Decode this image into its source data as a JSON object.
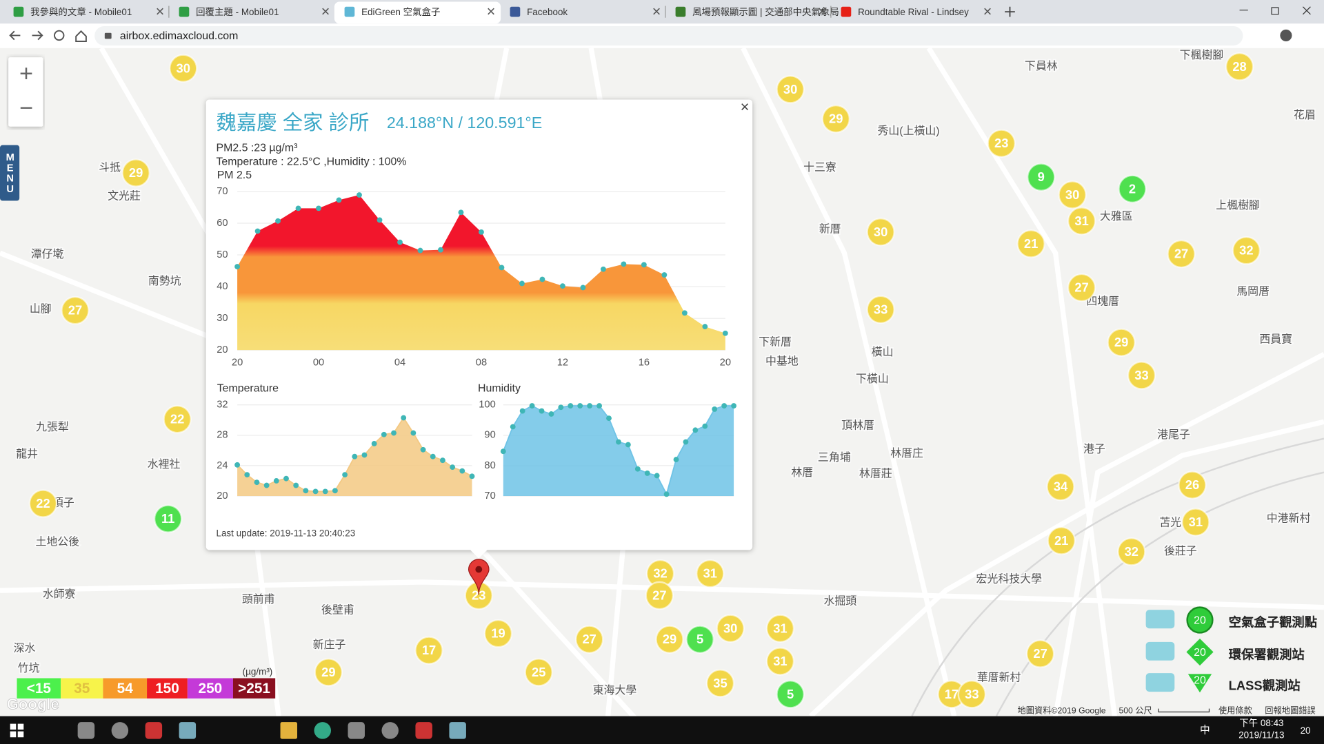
{
  "browser": {
    "tabs": [
      "我參與的文章 - Mobile01",
      "回覆主題 - Mobile01",
      "EdiGreen 空氣盒子",
      "Facebook",
      "風場預報顯示圖 | 交通部中央氣象局",
      "Roundtable Rival - Lindsey"
    ],
    "address": "airbox.edimaxcloud.com"
  },
  "map": {
    "zoom_in": "+",
    "zoom_out": "−",
    "menu": "MENU",
    "markers": [
      {
        "value": 30,
        "color": "#f2d648"
      },
      {
        "value": 30,
        "color": "#f2d648"
      },
      {
        "value": 29,
        "color": "#f2d648"
      },
      {
        "value": 28,
        "color": "#f2d648"
      },
      {
        "value": 23,
        "color": "#f2d648"
      },
      {
        "value": 9,
        "color": "#4fe04f"
      },
      {
        "value": 2,
        "color": "#4fe04f"
      },
      {
        "value": 30,
        "color": "#f2d648"
      },
      {
        "value": 31,
        "color": "#f2d648"
      },
      {
        "value": 29,
        "color": "#f2d648"
      },
      {
        "value": 30,
        "color": "#f2d648"
      },
      {
        "value": 21,
        "color": "#f2d648"
      },
      {
        "value": 27,
        "color": "#f2d648"
      },
      {
        "value": 32,
        "color": "#f2d648"
      },
      {
        "value": 27,
        "color": "#f2d648"
      },
      {
        "value": 27,
        "color": "#f2d648"
      },
      {
        "value": 33,
        "color": "#f2d648"
      },
      {
        "value": 29,
        "color": "#f2d648"
      },
      {
        "value": 33,
        "color": "#f2d648"
      },
      {
        "value": 22,
        "color": "#f2d648"
      },
      {
        "value": 34,
        "color": "#f2d648"
      },
      {
        "value": 26,
        "color": "#f2d648"
      },
      {
        "value": 22,
        "color": "#f2d648"
      },
      {
        "value": 11,
        "color": "#4fe04f"
      },
      {
        "value": 31,
        "color": "#f2d648"
      },
      {
        "value": 21,
        "color": "#f2d648"
      },
      {
        "value": 32,
        "color": "#f2d648"
      },
      {
        "value": 32,
        "color": "#f2d648"
      },
      {
        "value": 31,
        "color": "#f2d648"
      },
      {
        "value": 27,
        "color": "#f2d648"
      },
      {
        "value": 19,
        "color": "#f2d648"
      },
      {
        "value": 17,
        "color": "#f2d648"
      },
      {
        "value": 27,
        "color": "#f2d648"
      },
      {
        "value": 29,
        "color": "#f2d648"
      },
      {
        "value": 5,
        "color": "#4fe04f"
      },
      {
        "value": 30,
        "color": "#f2d648"
      },
      {
        "value": 31,
        "color": "#f2d648"
      },
      {
        "value": 31,
        "color": "#f2d648"
      },
      {
        "value": 25,
        "color": "#f2d648"
      },
      {
        "value": 29,
        "color": "#f2d648"
      },
      {
        "value": 35,
        "color": "#f2d648"
      },
      {
        "value": 5,
        "color": "#4fe04f"
      },
      {
        "value": 17,
        "color": "#f2d648"
      },
      {
        "value": 33,
        "color": "#f2d648"
      },
      {
        "value": 23,
        "color": "#f2d648"
      },
      {
        "value": 27,
        "color": "#f2d648"
      }
    ],
    "places": [
      "下員林",
      "下楓樹腳",
      "秀山(上橫山)",
      "十三寮",
      "花眉",
      "斗抵",
      "文光莊",
      "新厝",
      "大雅區",
      "上楓樹腳",
      "潭仔墘",
      "南勢坑",
      "山腳",
      "馬岡厝",
      "四塊厝",
      "西員寶",
      "下新厝",
      "中基地",
      "橫山",
      "下橫山",
      "頂林厝",
      "林厝庄",
      "三角埔",
      "林厝",
      "林厝莊",
      "港尾子",
      "港子",
      "九張犁",
      "龍井",
      "水裡社",
      "頂子",
      "土地公後",
      "中港新村",
      "苫光",
      "後莊子",
      "宏光科技大學",
      "水師寮",
      "頭前甫",
      "後壁甫",
      "水掘頭",
      "新庄子",
      "深水",
      "竹坑",
      "東海大學",
      "華厝新村"
    ],
    "pm_legend": {
      "items": [
        {
          "label": "<15",
          "color": "#4cf04c"
        },
        {
          "label": "35",
          "color": "#f7f34a"
        },
        {
          "label": "54",
          "color": "#f79a2a"
        },
        {
          "label": "150",
          "color": "#ee1e22"
        },
        {
          "label": "250",
          "color": "#c43ad8"
        },
        {
          "label": ">251",
          "color": "#8a0f20"
        }
      ],
      "unit": "(µg/m³)"
    },
    "station_legend": [
      {
        "label": "空氣盒子觀測點",
        "value": 20
      },
      {
        "label": "環保署觀測站",
        "value": 20
      },
      {
        "label": "LASS觀測站",
        "value": 20
      }
    ],
    "logo": "Google",
    "footer": [
      "地圖資料©2019 Google",
      "500 公尺",
      "使用條款",
      "回報地圖錯誤"
    ]
  },
  "popup": {
    "title": "魏嘉慶 全家 診所",
    "coords": "24.188°N / 120.591°E",
    "pm": "PM2.5 :23 µg/m³",
    "weather": "Temperature : 22.5°C ,Humidity : 100%",
    "close": "×",
    "updated": "Last update: 2019-11-13 20:40:23"
  },
  "chart_data": [
    {
      "type": "area",
      "title": "PM 2.5",
      "categories": [
        "20",
        null,
        null,
        null,
        "00",
        null,
        null,
        null,
        "04",
        null,
        null,
        null,
        "08",
        null,
        null,
        null,
        "12",
        null,
        null,
        null,
        "16",
        null,
        null,
        null,
        "20"
      ],
      "values": [
        46.3,
        57.5,
        60.7,
        64.7,
        64.7,
        67.3,
        68.9,
        61,
        54,
        51.4,
        51.6,
        63.4,
        57.2,
        46,
        41,
        42.3,
        40.2,
        39.7,
        45.5,
        47.1,
        46.9,
        43.7,
        31.7,
        27.4,
        25.3
      ],
      "ylim": [
        20,
        70
      ],
      "yticks": [
        20,
        30,
        40,
        50,
        60,
        70
      ],
      "color": "#3fb6b6",
      "grid": true
    },
    {
      "type": "area",
      "title": "Temperature",
      "values": [
        24.1,
        22.8,
        21.8,
        21.4,
        22,
        22.3,
        21.4,
        20.7,
        20.6,
        20.6,
        20.7,
        22.8,
        25.2,
        25.4,
        26.9,
        28.1,
        28.3,
        30.3,
        28.3,
        26.1,
        25.2,
        24.7,
        23.8,
        23.3,
        22.6
      ],
      "ylim": [
        20,
        32
      ],
      "yticks": [
        20,
        24,
        28,
        32
      ],
      "color": "#3fb6b6",
      "fill": "#f3c983",
      "grid": true
    },
    {
      "type": "area",
      "title": "Humidity",
      "values": [
        84.7,
        92.8,
        98,
        99.7,
        98,
        97,
        99.2,
        99.7,
        99.7,
        99.7,
        99.7,
        95.6,
        87.8,
        86.9,
        78.9,
        77.5,
        76.7,
        70.6,
        82,
        87.8,
        91.7,
        93,
        98.6,
        99.7,
        99.7
      ],
      "ylim": [
        70,
        100
      ],
      "yticks": [
        70,
        80,
        90,
        100
      ],
      "color": "#3fb6b6",
      "fill": "#6fc3e6",
      "grid": true
    }
  ],
  "taskbar": {
    "ime": "中",
    "time": "下午 08:43",
    "date": "2019/11/13",
    "notifications": "20"
  }
}
